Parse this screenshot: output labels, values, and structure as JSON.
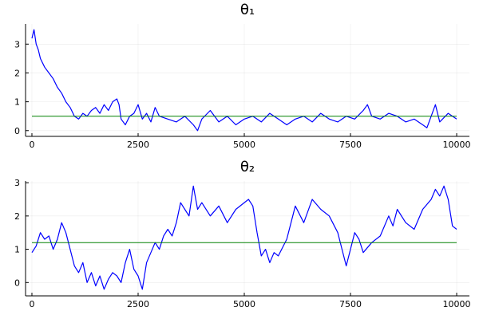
{
  "chart_data": [
    {
      "type": "line",
      "title": "θ₁",
      "xlabel": "",
      "ylabel": "",
      "xlim": [
        -150,
        10300
      ],
      "ylim": [
        -0.2,
        3.7
      ],
      "xticks": [
        0,
        2500,
        5000,
        7500,
        10000
      ],
      "xtick_labels": [
        "0",
        "2500",
        "5000",
        "7500",
        "10000"
      ],
      "yticks": [
        0,
        1,
        2,
        3
      ],
      "ytick_labels": [
        "0",
        "1",
        "2",
        "3"
      ],
      "grid": true,
      "legend": "none",
      "series": [
        {
          "color": "#0000ff",
          "x": [
            0,
            50,
            100,
            150,
            200,
            300,
            400,
            500,
            600,
            700,
            800,
            900,
            1000,
            1100,
            1200,
            1300,
            1400,
            1500,
            1600,
            1700,
            1800,
            1900,
            2000,
            2050,
            2100,
            2200,
            2300,
            2400,
            2500,
            2600,
            2700,
            2800,
            2900,
            3000,
            3200,
            3400,
            3600,
            3800,
            3900,
            4000,
            4200,
            4400,
            4600,
            4800,
            5000,
            5200,
            5400,
            5600,
            5800,
            6000,
            6200,
            6400,
            6600,
            6800,
            7000,
            7200,
            7400,
            7600,
            7800,
            7900,
            8000,
            8200,
            8400,
            8600,
            8800,
            9000,
            9200,
            9300,
            9400,
            9500,
            9600,
            9800,
            10000
          ],
          "y": [
            3.2,
            3.5,
            3.0,
            2.8,
            2.5,
            2.2,
            2.0,
            1.8,
            1.5,
            1.3,
            1.0,
            0.8,
            0.5,
            0.4,
            0.6,
            0.5,
            0.7,
            0.8,
            0.6,
            0.9,
            0.7,
            1.0,
            1.1,
            0.9,
            0.4,
            0.2,
            0.5,
            0.6,
            0.9,
            0.4,
            0.6,
            0.3,
            0.8,
            0.5,
            0.4,
            0.3,
            0.5,
            0.2,
            0.0,
            0.4,
            0.7,
            0.3,
            0.5,
            0.2,
            0.4,
            0.5,
            0.3,
            0.6,
            0.4,
            0.2,
            0.4,
            0.5,
            0.3,
            0.6,
            0.4,
            0.3,
            0.5,
            0.4,
            0.7,
            0.9,
            0.5,
            0.4,
            0.6,
            0.5,
            0.3,
            0.4,
            0.2,
            0.1,
            0.5,
            0.9,
            0.3,
            0.6,
            0.4
          ]
        },
        {
          "color": "#008000",
          "x": [
            0,
            10000
          ],
          "y": [
            0.5,
            0.5
          ]
        }
      ]
    },
    {
      "type": "line",
      "title": "θ₂",
      "xlabel": "",
      "ylabel": "",
      "xlim": [
        -150,
        10300
      ],
      "ylim": [
        -0.4,
        3.05
      ],
      "xticks": [
        0,
        2500,
        5000,
        7500,
        10000
      ],
      "xtick_labels": [
        "0",
        "2500",
        "5000",
        "7500",
        "10000"
      ],
      "yticks": [
        0,
        1,
        2,
        3
      ],
      "ytick_labels": [
        "0",
        "1",
        "2",
        "3"
      ],
      "grid": true,
      "legend": "none",
      "series": [
        {
          "color": "#0000ff",
          "x": [
            0,
            100,
            200,
            300,
            400,
            500,
            600,
            700,
            800,
            900,
            1000,
            1100,
            1200,
            1300,
            1400,
            1500,
            1600,
            1700,
            1800,
            1900,
            2000,
            2100,
            2200,
            2300,
            2400,
            2500,
            2600,
            2700,
            2800,
            2900,
            3000,
            3100,
            3200,
            3300,
            3400,
            3500,
            3600,
            3700,
            3800,
            3900,
            4000,
            4200,
            4400,
            4600,
            4800,
            5000,
            5100,
            5200,
            5300,
            5400,
            5500,
            5600,
            5700,
            5800,
            6000,
            6200,
            6400,
            6600,
            6800,
            7000,
            7200,
            7300,
            7400,
            7500,
            7600,
            7700,
            7800,
            8000,
            8200,
            8400,
            8500,
            8600,
            8800,
            9000,
            9200,
            9400,
            9500,
            9600,
            9700,
            9800,
            9900,
            10000
          ],
          "y": [
            0.9,
            1.1,
            1.5,
            1.3,
            1.4,
            1.0,
            1.3,
            1.8,
            1.5,
            1.0,
            0.5,
            0.3,
            0.6,
            0.0,
            0.3,
            -0.1,
            0.2,
            -0.2,
            0.1,
            0.3,
            0.2,
            0.0,
            0.6,
            1.0,
            0.4,
            0.2,
            -0.2,
            0.6,
            0.9,
            1.2,
            1.0,
            1.4,
            1.6,
            1.4,
            1.8,
            2.4,
            2.2,
            2.0,
            2.9,
            2.2,
            2.4,
            2.0,
            2.3,
            1.8,
            2.2,
            2.4,
            2.5,
            2.3,
            1.5,
            0.8,
            1.0,
            0.6,
            0.9,
            0.8,
            1.3,
            2.3,
            1.8,
            2.5,
            2.2,
            2.0,
            1.5,
            1.0,
            0.5,
            1.0,
            1.5,
            1.3,
            0.9,
            1.2,
            1.4,
            2.0,
            1.7,
            2.2,
            1.8,
            1.6,
            2.2,
            2.5,
            2.8,
            2.6,
            2.9,
            2.5,
            1.7,
            1.6
          ]
        },
        {
          "color": "#008000",
          "x": [
            0,
            10000
          ],
          "y": [
            1.2,
            1.2
          ]
        }
      ]
    }
  ]
}
